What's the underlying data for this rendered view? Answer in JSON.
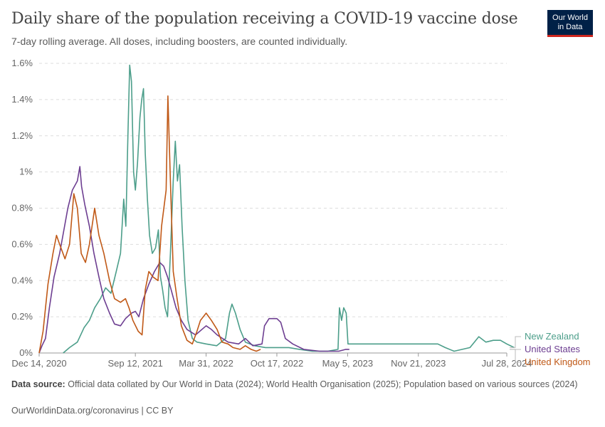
{
  "header": {
    "title": "Daily share of the population receiving a COVID-19 vaccine dose",
    "subtitle": "7-day rolling average. All doses, including boosters, are counted individually.",
    "logo_line1": "Our World",
    "logo_line2": "in Data"
  },
  "footer": {
    "source_label": "Data source:",
    "source_text": "Official data collated by Our World in Data (2024); World Health Organisation (2025); Population based on various sources (2024)",
    "url": "OurWorldinData.org/coronavirus | CC BY"
  },
  "chart_data": {
    "type": "line",
    "title": "Daily share of the population receiving a COVID-19 vaccine dose",
    "subtitle": "7-day rolling average. All doses, including boosters, are counted individually.",
    "xlabel": "",
    "ylabel": "",
    "y_ticks": [
      "0%",
      "0.2%",
      "0.4%",
      "0.6%",
      "0.8%",
      "1%",
      "1.2%",
      "1.4%",
      "1.6%"
    ],
    "y_tick_values": [
      0,
      0.2,
      0.4,
      0.6,
      0.8,
      1.0,
      1.2,
      1.4,
      1.6
    ],
    "ylim": [
      0,
      1.6
    ],
    "x_ticks": [
      {
        "label": "Dec 14, 2020",
        "date": "2020-12-14"
      },
      {
        "label": "Sep 12, 2021",
        "date": "2021-09-12"
      },
      {
        "label": "Mar 31, 2022",
        "date": "2022-03-31"
      },
      {
        "label": "Oct 17, 2022",
        "date": "2022-10-17"
      },
      {
        "label": "May 5, 2023",
        "date": "2023-05-05"
      },
      {
        "label": "Nov 21, 2023",
        "date": "2023-11-21"
      },
      {
        "label": "Jul 28, 2024",
        "date": "2024-07-28"
      }
    ],
    "xlim": [
      "2020-12-14",
      "2024-07-28"
    ],
    "grid": "horizontal dashed",
    "legend_placement": "right, at line ends",
    "series": [
      {
        "name": "New Zealand",
        "color": "#4c9e8a",
        "points": [
          [
            "2021-02-20",
            0.0
          ],
          [
            "2021-03-10",
            0.03
          ],
          [
            "2021-04-01",
            0.06
          ],
          [
            "2021-04-20",
            0.14
          ],
          [
            "2021-05-05",
            0.18
          ],
          [
            "2021-05-20",
            0.25
          ],
          [
            "2021-06-05",
            0.3
          ],
          [
            "2021-06-20",
            0.36
          ],
          [
            "2021-07-05",
            0.33
          ],
          [
            "2021-07-20",
            0.45
          ],
          [
            "2021-08-01",
            0.55
          ],
          [
            "2021-08-10",
            0.85
          ],
          [
            "2021-08-16",
            0.7
          ],
          [
            "2021-08-22",
            1.2
          ],
          [
            "2021-08-27",
            1.59
          ],
          [
            "2021-09-01",
            1.5
          ],
          [
            "2021-09-07",
            1.0
          ],
          [
            "2021-09-12",
            0.9
          ],
          [
            "2021-09-18",
            1.05
          ],
          [
            "2021-09-25",
            1.3
          ],
          [
            "2021-09-30",
            1.4
          ],
          [
            "2021-10-05",
            1.46
          ],
          [
            "2021-10-10",
            1.1
          ],
          [
            "2021-10-16",
            0.85
          ],
          [
            "2021-10-22",
            0.65
          ],
          [
            "2021-10-30",
            0.55
          ],
          [
            "2021-11-08",
            0.58
          ],
          [
            "2021-11-16",
            0.68
          ],
          [
            "2021-11-22",
            0.42
          ],
          [
            "2021-11-28",
            0.35
          ],
          [
            "2021-12-05",
            0.25
          ],
          [
            "2021-12-12",
            0.2
          ],
          [
            "2021-12-20",
            0.55
          ],
          [
            "2021-12-28",
            0.95
          ],
          [
            "2022-01-03",
            1.17
          ],
          [
            "2022-01-09",
            0.95
          ],
          [
            "2022-01-15",
            1.04
          ],
          [
            "2022-01-22",
            0.7
          ],
          [
            "2022-01-30",
            0.4
          ],
          [
            "2022-02-08",
            0.18
          ],
          [
            "2022-02-20",
            0.08
          ],
          [
            "2022-03-05",
            0.06
          ],
          [
            "2022-03-31",
            0.05
          ],
          [
            "2022-04-30",
            0.04
          ],
          [
            "2022-05-25",
            0.08
          ],
          [
            "2022-06-05",
            0.22
          ],
          [
            "2022-06-12",
            0.27
          ],
          [
            "2022-06-22",
            0.22
          ],
          [
            "2022-07-05",
            0.13
          ],
          [
            "2022-07-20",
            0.06
          ],
          [
            "2022-08-15",
            0.04
          ],
          [
            "2022-09-15",
            0.03
          ],
          [
            "2022-10-17",
            0.03
          ],
          [
            "2022-11-20",
            0.03
          ],
          [
            "2022-12-20",
            0.02
          ],
          [
            "2023-01-25",
            0.01
          ],
          [
            "2023-03-10",
            0.01
          ],
          [
            "2023-04-08",
            0.02
          ],
          [
            "2023-04-12",
            0.25
          ],
          [
            "2023-04-18",
            0.18
          ],
          [
            "2023-04-24",
            0.25
          ],
          [
            "2023-05-01",
            0.22
          ],
          [
            "2023-05-06",
            0.05
          ],
          [
            "2023-07-15",
            0.05
          ],
          [
            "2023-10-01",
            0.05
          ],
          [
            "2024-01-15",
            0.05
          ],
          [
            "2024-02-05",
            0.03
          ],
          [
            "2024-03-01",
            0.01
          ],
          [
            "2024-04-15",
            0.03
          ],
          [
            "2024-05-10",
            0.09
          ],
          [
            "2024-05-30",
            0.06
          ],
          [
            "2024-06-20",
            0.07
          ],
          [
            "2024-07-10",
            0.07
          ],
          [
            "2024-07-28",
            0.05
          ],
          [
            "2024-08-18",
            0.03
          ]
        ]
      },
      {
        "name": "United States",
        "color": "#6d3e91",
        "points": [
          [
            "2020-12-14",
            0.0
          ],
          [
            "2020-12-22",
            0.04
          ],
          [
            "2021-01-01",
            0.08
          ],
          [
            "2021-01-12",
            0.25
          ],
          [
            "2021-01-25",
            0.42
          ],
          [
            "2021-02-10",
            0.55
          ],
          [
            "2021-02-22",
            0.68
          ],
          [
            "2021-03-05",
            0.8
          ],
          [
            "2021-03-18",
            0.9
          ],
          [
            "2021-04-01",
            0.95
          ],
          [
            "2021-04-08",
            1.03
          ],
          [
            "2021-04-13",
            0.92
          ],
          [
            "2021-04-22",
            0.82
          ],
          [
            "2021-05-05",
            0.7
          ],
          [
            "2021-05-18",
            0.55
          ],
          [
            "2021-06-01",
            0.42
          ],
          [
            "2021-06-15",
            0.3
          ],
          [
            "2021-07-01",
            0.22
          ],
          [
            "2021-07-15",
            0.16
          ],
          [
            "2021-08-01",
            0.15
          ],
          [
            "2021-08-15",
            0.19
          ],
          [
            "2021-09-01",
            0.22
          ],
          [
            "2021-09-12",
            0.23
          ],
          [
            "2021-09-22",
            0.2
          ],
          [
            "2021-10-05",
            0.3
          ],
          [
            "2021-10-20",
            0.38
          ],
          [
            "2021-11-05",
            0.45
          ],
          [
            "2021-11-20",
            0.5
          ],
          [
            "2021-12-01",
            0.48
          ],
          [
            "2021-12-12",
            0.42
          ],
          [
            "2021-12-22",
            0.35
          ],
          [
            "2022-01-05",
            0.25
          ],
          [
            "2022-01-20",
            0.18
          ],
          [
            "2022-02-05",
            0.13
          ],
          [
            "2022-03-01",
            0.1
          ],
          [
            "2022-03-31",
            0.15
          ],
          [
            "2022-04-15",
            0.13
          ],
          [
            "2022-05-01",
            0.1
          ],
          [
            "2022-06-01",
            0.06
          ],
          [
            "2022-07-01",
            0.05
          ],
          [
            "2022-07-20",
            0.08
          ],
          [
            "2022-08-10",
            0.04
          ],
          [
            "2022-09-05",
            0.05
          ],
          [
            "2022-09-12",
            0.15
          ],
          [
            "2022-09-25",
            0.19
          ],
          [
            "2022-10-17",
            0.19
          ],
          [
            "2022-10-28",
            0.17
          ],
          [
            "2022-11-10",
            0.08
          ],
          [
            "2022-12-01",
            0.05
          ],
          [
            "2023-01-01",
            0.02
          ],
          [
            "2023-02-15",
            0.01
          ],
          [
            "2023-04-10",
            0.01
          ],
          [
            "2023-04-30",
            0.02
          ],
          [
            "2023-05-10",
            0.02
          ]
        ]
      },
      {
        "name": "United Kingdom",
        "color": "#c05917",
        "points": [
          [
            "2020-12-14",
            0.0
          ],
          [
            "2020-12-25",
            0.12
          ],
          [
            "2021-01-08",
            0.38
          ],
          [
            "2021-01-22",
            0.55
          ],
          [
            "2021-02-01",
            0.65
          ],
          [
            "2021-02-10",
            0.6
          ],
          [
            "2021-02-25",
            0.52
          ],
          [
            "2021-03-10",
            0.6
          ],
          [
            "2021-03-22",
            0.88
          ],
          [
            "2021-04-01",
            0.8
          ],
          [
            "2021-04-12",
            0.55
          ],
          [
            "2021-04-24",
            0.5
          ],
          [
            "2021-05-05",
            0.6
          ],
          [
            "2021-05-20",
            0.8
          ],
          [
            "2021-06-01",
            0.65
          ],
          [
            "2021-06-15",
            0.55
          ],
          [
            "2021-07-01",
            0.4
          ],
          [
            "2021-07-15",
            0.3
          ],
          [
            "2021-08-01",
            0.28
          ],
          [
            "2021-08-15",
            0.3
          ],
          [
            "2021-08-25",
            0.25
          ],
          [
            "2021-09-05",
            0.18
          ],
          [
            "2021-09-20",
            0.12
          ],
          [
            "2021-10-01",
            0.1
          ],
          [
            "2021-10-10",
            0.35
          ],
          [
            "2021-10-20",
            0.45
          ],
          [
            "2021-11-01",
            0.42
          ],
          [
            "2021-11-15",
            0.4
          ],
          [
            "2021-11-25",
            0.7
          ],
          [
            "2021-12-08",
            0.9
          ],
          [
            "2021-12-13",
            1.42
          ],
          [
            "2021-12-20",
            0.95
          ],
          [
            "2021-12-28",
            0.45
          ],
          [
            "2022-01-08",
            0.3
          ],
          [
            "2022-01-20",
            0.15
          ],
          [
            "2022-02-05",
            0.07
          ],
          [
            "2022-02-20",
            0.05
          ],
          [
            "2022-03-05",
            0.12
          ],
          [
            "2022-03-15",
            0.18
          ],
          [
            "2022-03-31",
            0.22
          ],
          [
            "2022-04-15",
            0.18
          ],
          [
            "2022-05-01",
            0.13
          ],
          [
            "2022-05-15",
            0.06
          ],
          [
            "2022-06-01",
            0.05
          ],
          [
            "2022-06-15",
            0.03
          ],
          [
            "2022-07-05",
            0.02
          ],
          [
            "2022-07-20",
            0.04
          ],
          [
            "2022-08-05",
            0.02
          ],
          [
            "2022-08-20",
            0.01
          ],
          [
            "2022-09-01",
            0.02
          ]
        ]
      }
    ]
  }
}
